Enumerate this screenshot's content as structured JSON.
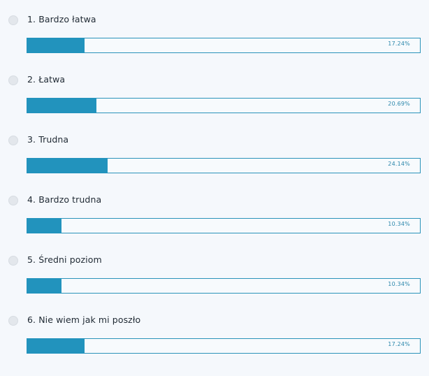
{
  "poll": {
    "options": [
      {
        "label": "1. Bardzo łatwa",
        "percent_text": "17.24%",
        "percent": 17.24
      },
      {
        "label": "2. Łatwa",
        "percent_text": "20.69%",
        "percent": 20.69
      },
      {
        "label": "3. Trudna",
        "percent_text": "24.14%",
        "percent": 24.14
      },
      {
        "label": "4. Bardzo trudna",
        "percent_text": "10.34%",
        "percent": 10.34
      },
      {
        "label": "5. Średni poziom",
        "percent_text": "10.34%",
        "percent": 10.34
      },
      {
        "label": "6. Nie wiem jak mi poszło",
        "percent_text": "17.24%",
        "percent": 17.24
      }
    ]
  },
  "colors": {
    "bar_fill": "#2293bd",
    "bar_border": "#2b93ba",
    "radio": "#e3e7ec",
    "background": "#f5f8fc"
  }
}
